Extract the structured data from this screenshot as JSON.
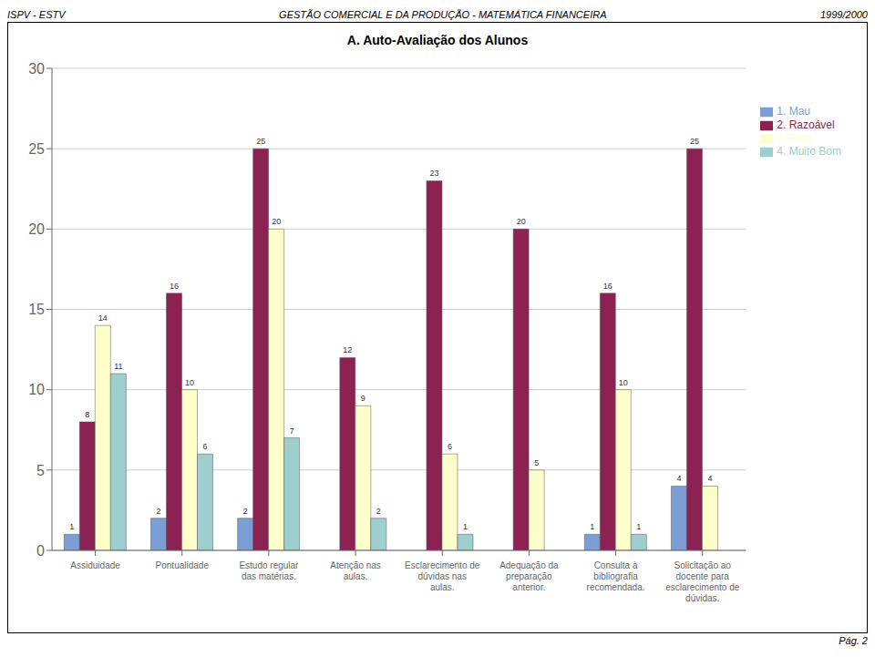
{
  "chart_data": {
    "type": "bar",
    "title": "A. Auto-Avaliação dos Alunos",
    "annotations": [
      "ISPV - ESTV",
      "GESTÃO COMERCIAL E DA PRODUÇÃO - MATEMÁTICA FINANCEIRA",
      "1999/2000",
      "Pág. 2"
    ],
    "categories": [
      "Assiduidade",
      "Pontualidade",
      "Estudo regular das matérias.",
      "Atenção nas aulas.",
      "Esclarecimento de dúvidas nas\naulas.",
      "Adequação da preparação\nanterior.",
      "Consulta à bibliografia\nrecomendada.",
      "Solicitação ao docente para\nesclarecimento de dúvidas."
    ],
    "series": [
      {
        "name": "1. Mau",
        "color": "#7B9FD4",
        "values": [
          1,
          2,
          2,
          0,
          0,
          0,
          1,
          4
        ]
      },
      {
        "name": "2. Razoável",
        "color": "#8B2252",
        "values": [
          8,
          16,
          25,
          12,
          23,
          20,
          16,
          25
        ]
      },
      {
        "name": "3. Bom",
        "color": "#FFFFCC",
        "values": [
          14,
          10,
          20,
          9,
          6,
          5,
          10,
          4
        ]
      },
      {
        "name": "4. Muito Bom",
        "color": "#9ECECE",
        "values": [
          11,
          6,
          7,
          2,
          1,
          0,
          1,
          0
        ]
      }
    ],
    "ylim": [
      0,
      30
    ],
    "yticks": [
      0,
      5,
      10,
      15,
      20,
      25,
      30
    ],
    "grid": true,
    "data_labels": true,
    "legend": "right"
  }
}
